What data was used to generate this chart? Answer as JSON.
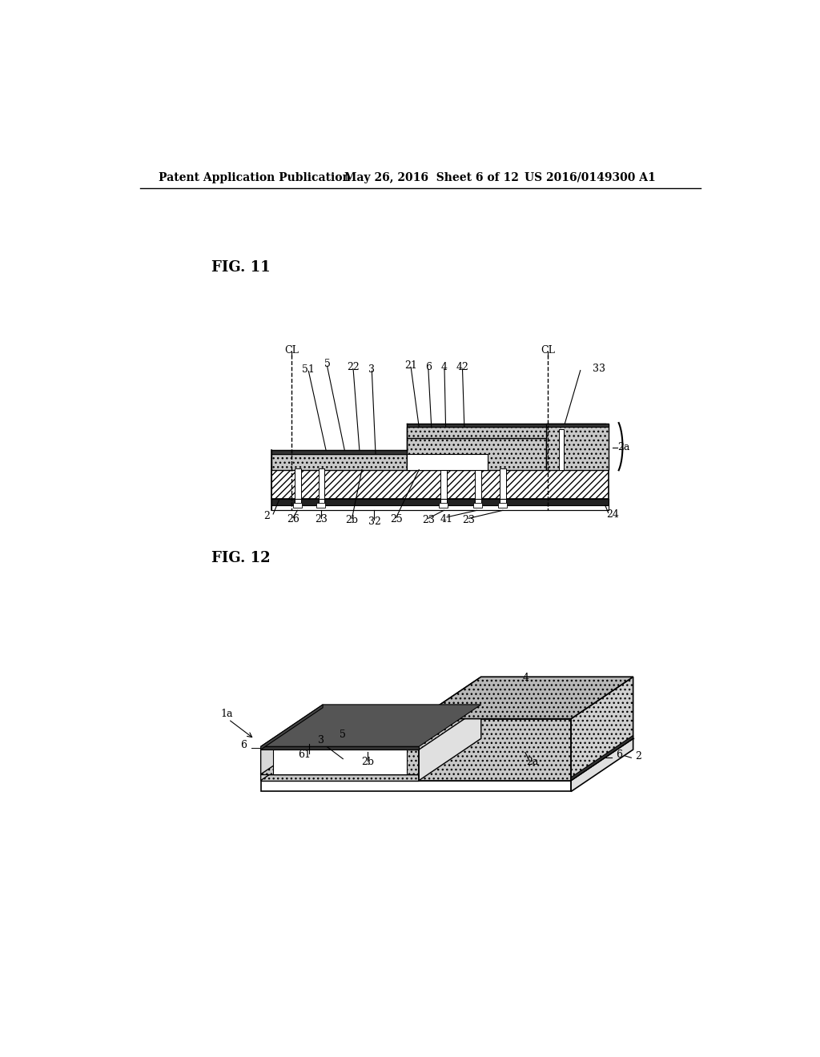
{
  "background_color": "#ffffff",
  "header_left": "Patent Application Publication",
  "header_center": "May 26, 2016  Sheet 6 of 12",
  "header_right": "US 2016/0149300 A1",
  "fig11_label": "FIG. 11",
  "fig12_label": "FIG. 12"
}
